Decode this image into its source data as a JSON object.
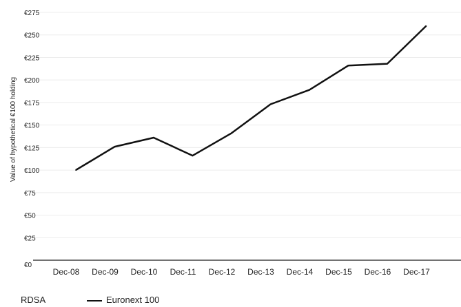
{
  "chart_data": {
    "type": "line",
    "ylabel": "Value of hypothetical €100 holding",
    "y_ticks": [
      "€0",
      "€25",
      "€50",
      "€75",
      "€100",
      "€125",
      "€150",
      "€175",
      "€200",
      "€225",
      "€250",
      "€275"
    ],
    "ylim": [
      0,
      275
    ],
    "x_ticks": [
      "Dec-08",
      "Dec-09",
      "Dec-10",
      "Dec-11",
      "Dec-12",
      "Dec-13",
      "Dec-14",
      "Dec-15",
      "Dec-16",
      "Dec-17"
    ],
    "grid": true,
    "legend_position": "bottom-left",
    "series": [
      {
        "name": "RDSA",
        "values": []
      },
      {
        "name": "Euronext 100",
        "color": "#111111",
        "values": [
          100,
          126,
          136,
          116,
          141,
          173,
          189,
          216,
          218,
          260
        ]
      }
    ]
  }
}
